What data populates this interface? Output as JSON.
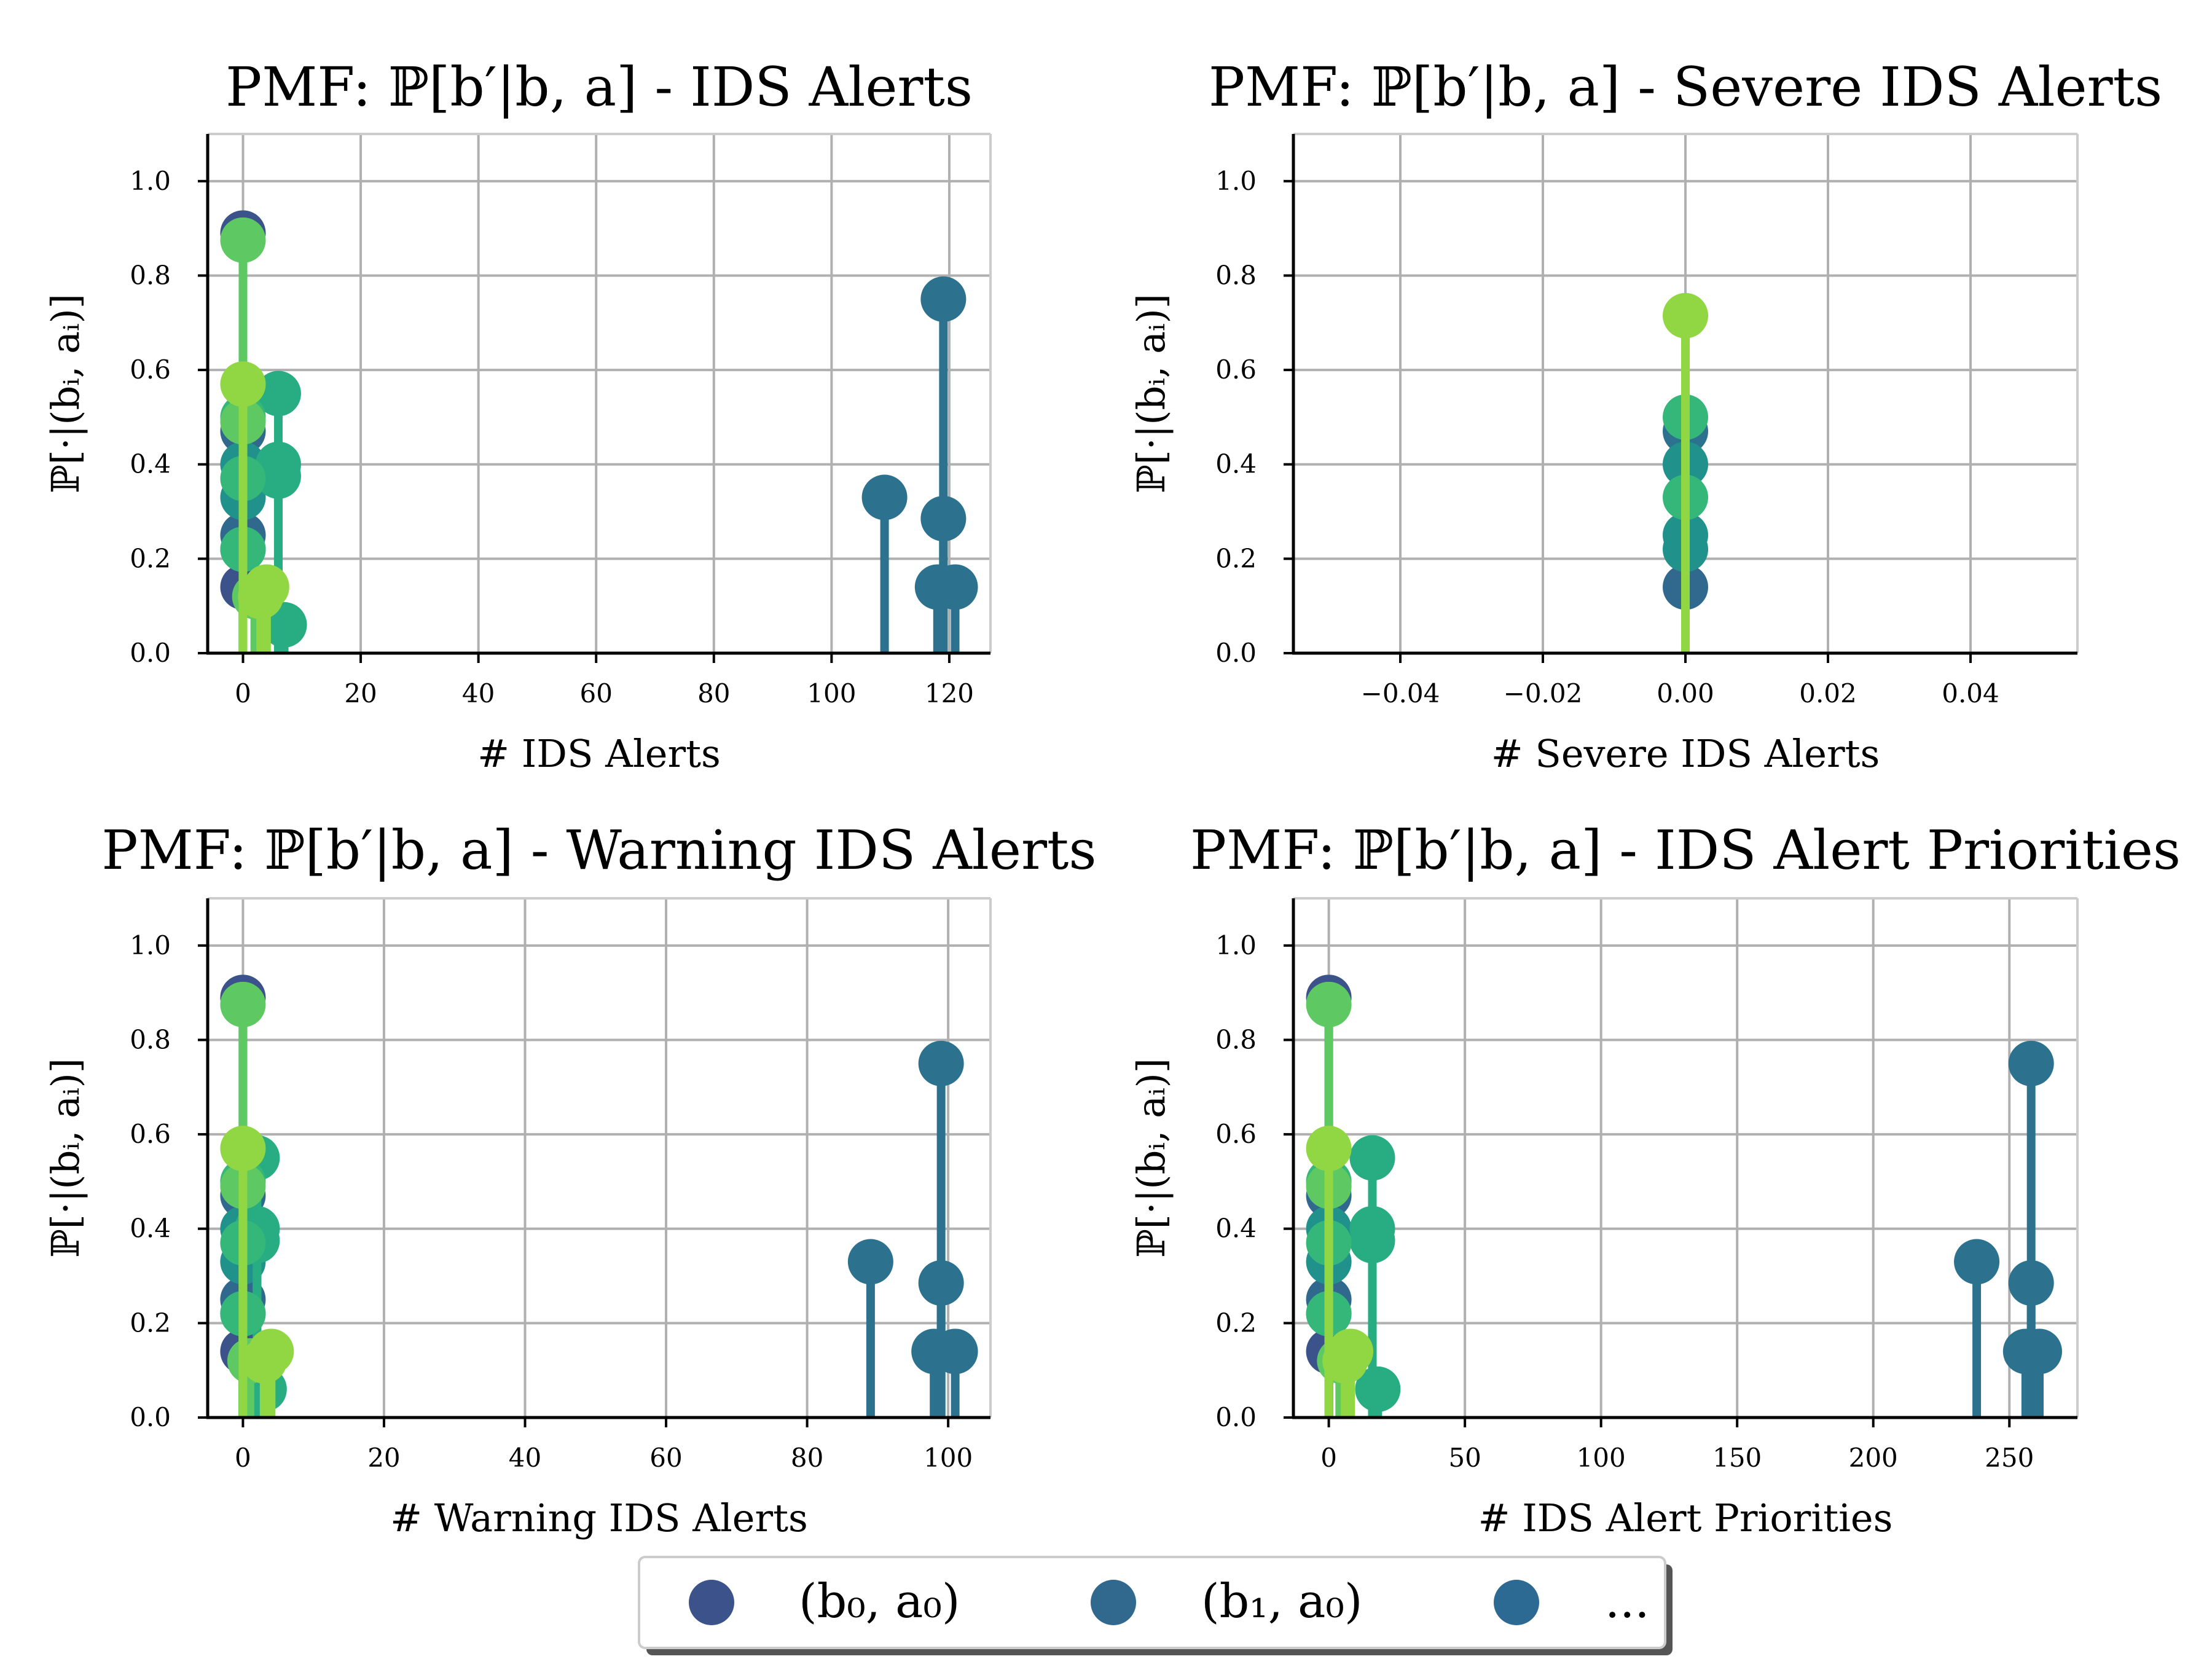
{
  "chart_data": [
    {
      "type": "stem",
      "title": "PMF: ℙ[b′|b, a] - IDS Alerts",
      "xlabel": "# IDS Alerts",
      "ylabel": "ℙ[·|(bᵢ, aᵢ)]",
      "xlim": [
        -6,
        127
      ],
      "ylim": [
        0,
        1.1
      ],
      "xticks": [
        0,
        20,
        40,
        60,
        80,
        100,
        120
      ],
      "xtick_labels": [
        "0",
        "20",
        "40",
        "60",
        "80",
        "100",
        "120"
      ],
      "yticks": [
        0.0,
        0.2,
        0.4,
        0.6,
        0.8,
        1.0
      ],
      "ytick_labels": [
        "0.0",
        "0.2",
        "0.4",
        "0.6",
        "0.8",
        "1.0"
      ],
      "grid": true,
      "series": [
        {
          "color": "#3b528b",
          "points": [
            [
              0,
              0.89
            ],
            [
              0,
              0.14
            ]
          ]
        },
        {
          "color": "#31688e",
          "points": [
            [
              0,
              0.47
            ],
            [
              0,
              0.25
            ]
          ]
        },
        {
          "color": "#2c728e",
          "points": [
            [
              119,
              0.75
            ],
            [
              119,
              0.285
            ],
            [
              118,
              0.14
            ],
            [
              121,
              0.14
            ],
            [
              109,
              0.33
            ]
          ]
        },
        {
          "color": "#21918c",
          "points": [
            [
              0,
              0.4
            ],
            [
              0,
              0.33
            ],
            [
              0,
              0.22
            ]
          ]
        },
        {
          "color": "#27ad81",
          "points": [
            [
              6,
              0.55
            ],
            [
              6,
              0.4
            ],
            [
              6,
              0.375
            ],
            [
              7,
              0.06
            ]
          ]
        },
        {
          "color": "#35b779",
          "points": [
            [
              0,
              0.5
            ],
            [
              0,
              0.37
            ],
            [
              0,
              0.22
            ]
          ]
        },
        {
          "color": "#5ec962",
          "points": [
            [
              0,
              0.875
            ],
            [
              0,
              0.49
            ],
            [
              2,
              0.12
            ]
          ]
        },
        {
          "color": "#90d743",
          "points": [
            [
              0,
              0.57
            ],
            [
              4,
              0.14
            ],
            [
              3,
              0.12
            ]
          ]
        }
      ]
    },
    {
      "type": "stem",
      "title": "PMF: ℙ[b′|b, a] - Severe IDS Alerts",
      "xlabel": "# Severe IDS Alerts",
      "ylabel": "ℙ[·|(bᵢ, aᵢ)]",
      "xlim": [
        -0.055,
        0.055
      ],
      "ylim": [
        0,
        1.1
      ],
      "xticks": [
        -0.04,
        -0.02,
        0.0,
        0.02,
        0.04
      ],
      "xtick_labels": [
        "−0.04",
        "−0.02",
        "0.00",
        "0.02",
        "0.04"
      ],
      "yticks": [
        0.0,
        0.2,
        0.4,
        0.6,
        0.8,
        1.0
      ],
      "ytick_labels": [
        "0.0",
        "0.2",
        "0.4",
        "0.6",
        "0.8",
        "1.0"
      ],
      "grid": true,
      "series": [
        {
          "color": "#31688e",
          "points": [
            [
              0,
              0.14
            ]
          ]
        },
        {
          "color": "#2c728e",
          "points": [
            [
              0,
              0.47
            ]
          ]
        },
        {
          "color": "#21918c",
          "points": [
            [
              0,
              0.4
            ],
            [
              0,
              0.25
            ],
            [
              0,
              0.22
            ]
          ]
        },
        {
          "color": "#35b779",
          "points": [
            [
              0,
              0.5
            ],
            [
              0,
              0.33
            ]
          ]
        },
        {
          "color": "#90d743",
          "points": [
            [
              0,
              0.715
            ]
          ]
        }
      ]
    },
    {
      "type": "stem",
      "title": "PMF: ℙ[b′|b, a] - Warning IDS Alerts",
      "xlabel": "# Warning IDS Alerts",
      "ylabel": "ℙ[·|(bᵢ, aᵢ)]",
      "xlim": [
        -5,
        106
      ],
      "ylim": [
        0,
        1.1
      ],
      "xticks": [
        0,
        20,
        40,
        60,
        80,
        100
      ],
      "xtick_labels": [
        "0",
        "20",
        "40",
        "60",
        "80",
        "100"
      ],
      "yticks": [
        0.0,
        0.2,
        0.4,
        0.6,
        0.8,
        1.0
      ],
      "ytick_labels": [
        "0.0",
        "0.2",
        "0.4",
        "0.6",
        "0.8",
        "1.0"
      ],
      "grid": true,
      "series": [
        {
          "color": "#3b528b",
          "points": [
            [
              0,
              0.89
            ],
            [
              0,
              0.14
            ]
          ]
        },
        {
          "color": "#31688e",
          "points": [
            [
              0,
              0.47
            ],
            [
              0,
              0.25
            ]
          ]
        },
        {
          "color": "#2c728e",
          "points": [
            [
              99,
              0.75
            ],
            [
              99,
              0.285
            ],
            [
              98,
              0.14
            ],
            [
              101,
              0.14
            ],
            [
              89,
              0.33
            ]
          ]
        },
        {
          "color": "#21918c",
          "points": [
            [
              0,
              0.4
            ],
            [
              0,
              0.33
            ],
            [
              0,
              0.22
            ]
          ]
        },
        {
          "color": "#27ad81",
          "points": [
            [
              2,
              0.55
            ],
            [
              2,
              0.4
            ],
            [
              2,
              0.375
            ],
            [
              3,
              0.06
            ]
          ]
        },
        {
          "color": "#35b779",
          "points": [
            [
              0,
              0.5
            ],
            [
              0,
              0.37
            ],
            [
              0,
              0.22
            ]
          ]
        },
        {
          "color": "#5ec962",
          "points": [
            [
              0,
              0.875
            ],
            [
              0,
              0.49
            ],
            [
              1,
              0.12
            ]
          ]
        },
        {
          "color": "#90d743",
          "points": [
            [
              0,
              0.57
            ],
            [
              4,
              0.14
            ],
            [
              3,
              0.12
            ]
          ]
        }
      ]
    },
    {
      "type": "stem",
      "title": "PMF: ℙ[b′|b, a] - IDS Alert Priorities",
      "xlabel": "# IDS Alert Priorities",
      "ylabel": "ℙ[·|(bᵢ, aᵢ)]",
      "xlim": [
        -13,
        275
      ],
      "ylim": [
        0,
        1.1
      ],
      "xticks": [
        0,
        50,
        100,
        150,
        200,
        250
      ],
      "xtick_labels": [
        "0",
        "50",
        "100",
        "150",
        "200",
        "250"
      ],
      "yticks": [
        0.0,
        0.2,
        0.4,
        0.6,
        0.8,
        1.0
      ],
      "ytick_labels": [
        "0.0",
        "0.2",
        "0.4",
        "0.6",
        "0.8",
        "1.0"
      ],
      "grid": true,
      "series": [
        {
          "color": "#3b528b",
          "points": [
            [
              0,
              0.89
            ],
            [
              0,
              0.14
            ]
          ]
        },
        {
          "color": "#31688e",
          "points": [
            [
              0,
              0.47
            ],
            [
              0,
              0.25
            ]
          ]
        },
        {
          "color": "#2c728e",
          "points": [
            [
              258,
              0.75
            ],
            [
              258,
              0.285
            ],
            [
              256,
              0.14
            ],
            [
              261,
              0.14
            ],
            [
              238,
              0.33
            ]
          ]
        },
        {
          "color": "#21918c",
          "points": [
            [
              0,
              0.4
            ],
            [
              0,
              0.33
            ],
            [
              0,
              0.22
            ]
          ]
        },
        {
          "color": "#27ad81",
          "points": [
            [
              16,
              0.55
            ],
            [
              16,
              0.4
            ],
            [
              16,
              0.375
            ],
            [
              18,
              0.06
            ]
          ]
        },
        {
          "color": "#35b779",
          "points": [
            [
              0,
              0.5
            ],
            [
              0,
              0.37
            ],
            [
              0,
              0.22
            ]
          ]
        },
        {
          "color": "#5ec962",
          "points": [
            [
              0,
              0.875
            ],
            [
              0,
              0.49
            ],
            [
              4,
              0.12
            ]
          ]
        },
        {
          "color": "#90d743",
          "points": [
            [
              0,
              0.57
            ],
            [
              8,
              0.14
            ],
            [
              6,
              0.12
            ]
          ]
        }
      ]
    }
  ],
  "legend": {
    "placement": "bottom-center",
    "entries": [
      {
        "label": "(b₀, a₀)",
        "color": "#3b528b"
      },
      {
        "label": "(b₁, a₀)",
        "color": "#31688e"
      },
      {
        "label": "...",
        "color": "#2c6a94"
      }
    ]
  }
}
